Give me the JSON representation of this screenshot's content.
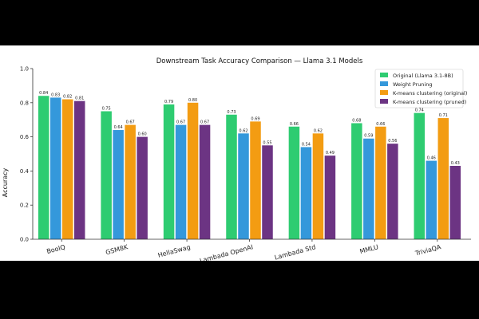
{
  "chart_data": {
    "type": "bar",
    "title": "Downstream Task Accuracy Comparison — Llama 3.1 Models",
    "xlabel": "",
    "ylabel": "Accuracy",
    "ylim": [
      0,
      1.0
    ],
    "yticks": [
      "0.0",
      "0.2",
      "0.4",
      "0.6",
      "0.8",
      "1.0"
    ],
    "legend_position": "top-right",
    "categories": [
      "BoolQ",
      "GSM8K",
      "HellaSwag",
      "Lambada OpenAI",
      "Lambada Std",
      "MMLU",
      "TriviaQA"
    ],
    "series": [
      {
        "name": "Original (Llama 3.1-8B)",
        "color": "#2ecc71",
        "values": [
          0.84,
          0.75,
          0.79,
          0.73,
          0.66,
          0.68,
          0.74
        ],
        "labels": [
          "0.84",
          "0.75",
          "0.79",
          "0.73",
          "0.66",
          "0.68",
          "0.74"
        ]
      },
      {
        "name": "Weight Pruning",
        "color": "#3498db",
        "values": [
          0.83,
          0.64,
          0.67,
          0.62,
          0.54,
          0.59,
          0.46
        ],
        "labels": [
          "0.83",
          "0.64",
          "0.67",
          "0.62",
          "0.54",
          "0.59",
          "0.46"
        ]
      },
      {
        "name": "K-means clustering (original)",
        "color": "#f39c12",
        "values": [
          0.82,
          0.67,
          0.8,
          0.69,
          0.62,
          0.66,
          0.71
        ],
        "labels": [
          "0.82",
          "0.67",
          "0.80",
          "0.69",
          "0.62",
          "0.66",
          "0.71"
        ]
      },
      {
        "name": "K-means clustering (pruned)",
        "color": "#6c3483",
        "values": [
          0.81,
          0.6,
          0.67,
          0.55,
          0.49,
          0.56,
          0.43
        ],
        "labels": [
          "0.81",
          "0.60",
          "0.67",
          "0.55",
          "0.49",
          "0.56",
          "0.43"
        ]
      }
    ]
  }
}
